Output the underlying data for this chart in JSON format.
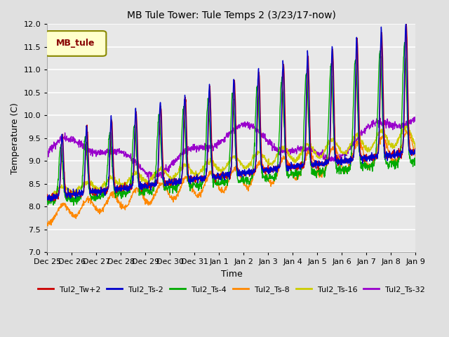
{
  "title": "MB Tule Tower: Tule Temps 2 (3/23/17-now)",
  "xlabel": "Time",
  "ylabel": "Temperature (C)",
  "ylim": [
    7.0,
    12.0
  ],
  "yticks": [
    7.0,
    7.5,
    8.0,
    8.5,
    9.0,
    9.5,
    10.0,
    10.5,
    11.0,
    11.5,
    12.0
  ],
  "legend_label": "MB_tule",
  "line_colors": {
    "Tul2_Tw+2": "#cc0000",
    "Tul2_Ts-2": "#0000cc",
    "Tul2_Ts-4": "#00aa00",
    "Tul2_Ts-8": "#ff8800",
    "Tul2_Ts-16": "#cccc00",
    "Tul2_Ts-32": "#9900cc"
  },
  "x_tick_labels": [
    "Dec 25",
    "Dec 26",
    "Dec 27",
    "Dec 28",
    "Dec 29",
    "Dec 30",
    "Dec 31",
    "Jan 1",
    "Jan 2",
    "Jan 3",
    "Jan 4",
    "Jan 5",
    "Jan 6",
    "Jan 7",
    "Jan 8",
    "Jan 9"
  ],
  "background_color": "#e0e0e0",
  "plot_background": "#e8e8e8",
  "grid_color": "#ffffff"
}
